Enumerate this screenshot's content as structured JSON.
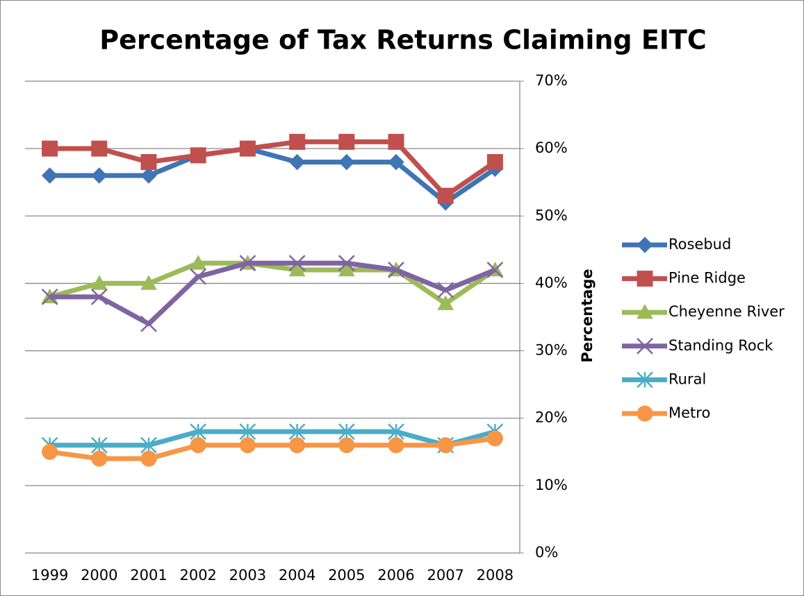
{
  "chart_data": {
    "type": "line",
    "title": "Percentage of Tax Returns Claiming EITC",
    "y_axis_label": "Percentage",
    "categories": [
      "1999",
      "2000",
      "2001",
      "2002",
      "2003",
      "2004",
      "2005",
      "2006",
      "2007",
      "2008"
    ],
    "series": [
      {
        "name": "Rosebud",
        "color": "#3f74b5",
        "marker": "diamond",
        "values": [
          56,
          56,
          56,
          59,
          60,
          58,
          58,
          58,
          52,
          57
        ]
      },
      {
        "name": "Pine Ridge",
        "color": "#c0504d",
        "marker": "square",
        "values": [
          60,
          60,
          58,
          59,
          60,
          61,
          61,
          61,
          53,
          58
        ]
      },
      {
        "name": "Cheyenne River",
        "color": "#9bbb59",
        "marker": "triangle",
        "values": [
          38,
          40,
          40,
          43,
          43,
          42,
          42,
          42,
          37,
          42
        ]
      },
      {
        "name": "Standing Rock",
        "color": "#8064a2",
        "marker": "x",
        "values": [
          38,
          38,
          34,
          41,
          43,
          43,
          43,
          42,
          39,
          42
        ]
      },
      {
        "name": "Rural",
        "color": "#4bacc6",
        "marker": "star",
        "values": [
          16,
          16,
          16,
          18,
          18,
          18,
          18,
          18,
          16,
          18
        ]
      },
      {
        "name": "Metro",
        "color": "#f79646",
        "marker": "circle",
        "values": [
          15,
          14,
          14,
          16,
          16,
          16,
          16,
          16,
          16,
          17
        ]
      }
    ],
    "ylim": [
      0,
      70
    ],
    "yticks": [
      {
        "value": 0,
        "label": "0%"
      },
      {
        "value": 10,
        "label": "10%"
      },
      {
        "value": 20,
        "label": "20%"
      },
      {
        "value": 30,
        "label": "30%"
      },
      {
        "value": 40,
        "label": "40%"
      },
      {
        "value": 50,
        "label": "50%"
      },
      {
        "value": 60,
        "label": "60%"
      },
      {
        "value": 70,
        "label": "70%"
      }
    ],
    "y_axis_side": "right",
    "grid": true,
    "legend": "right"
  }
}
